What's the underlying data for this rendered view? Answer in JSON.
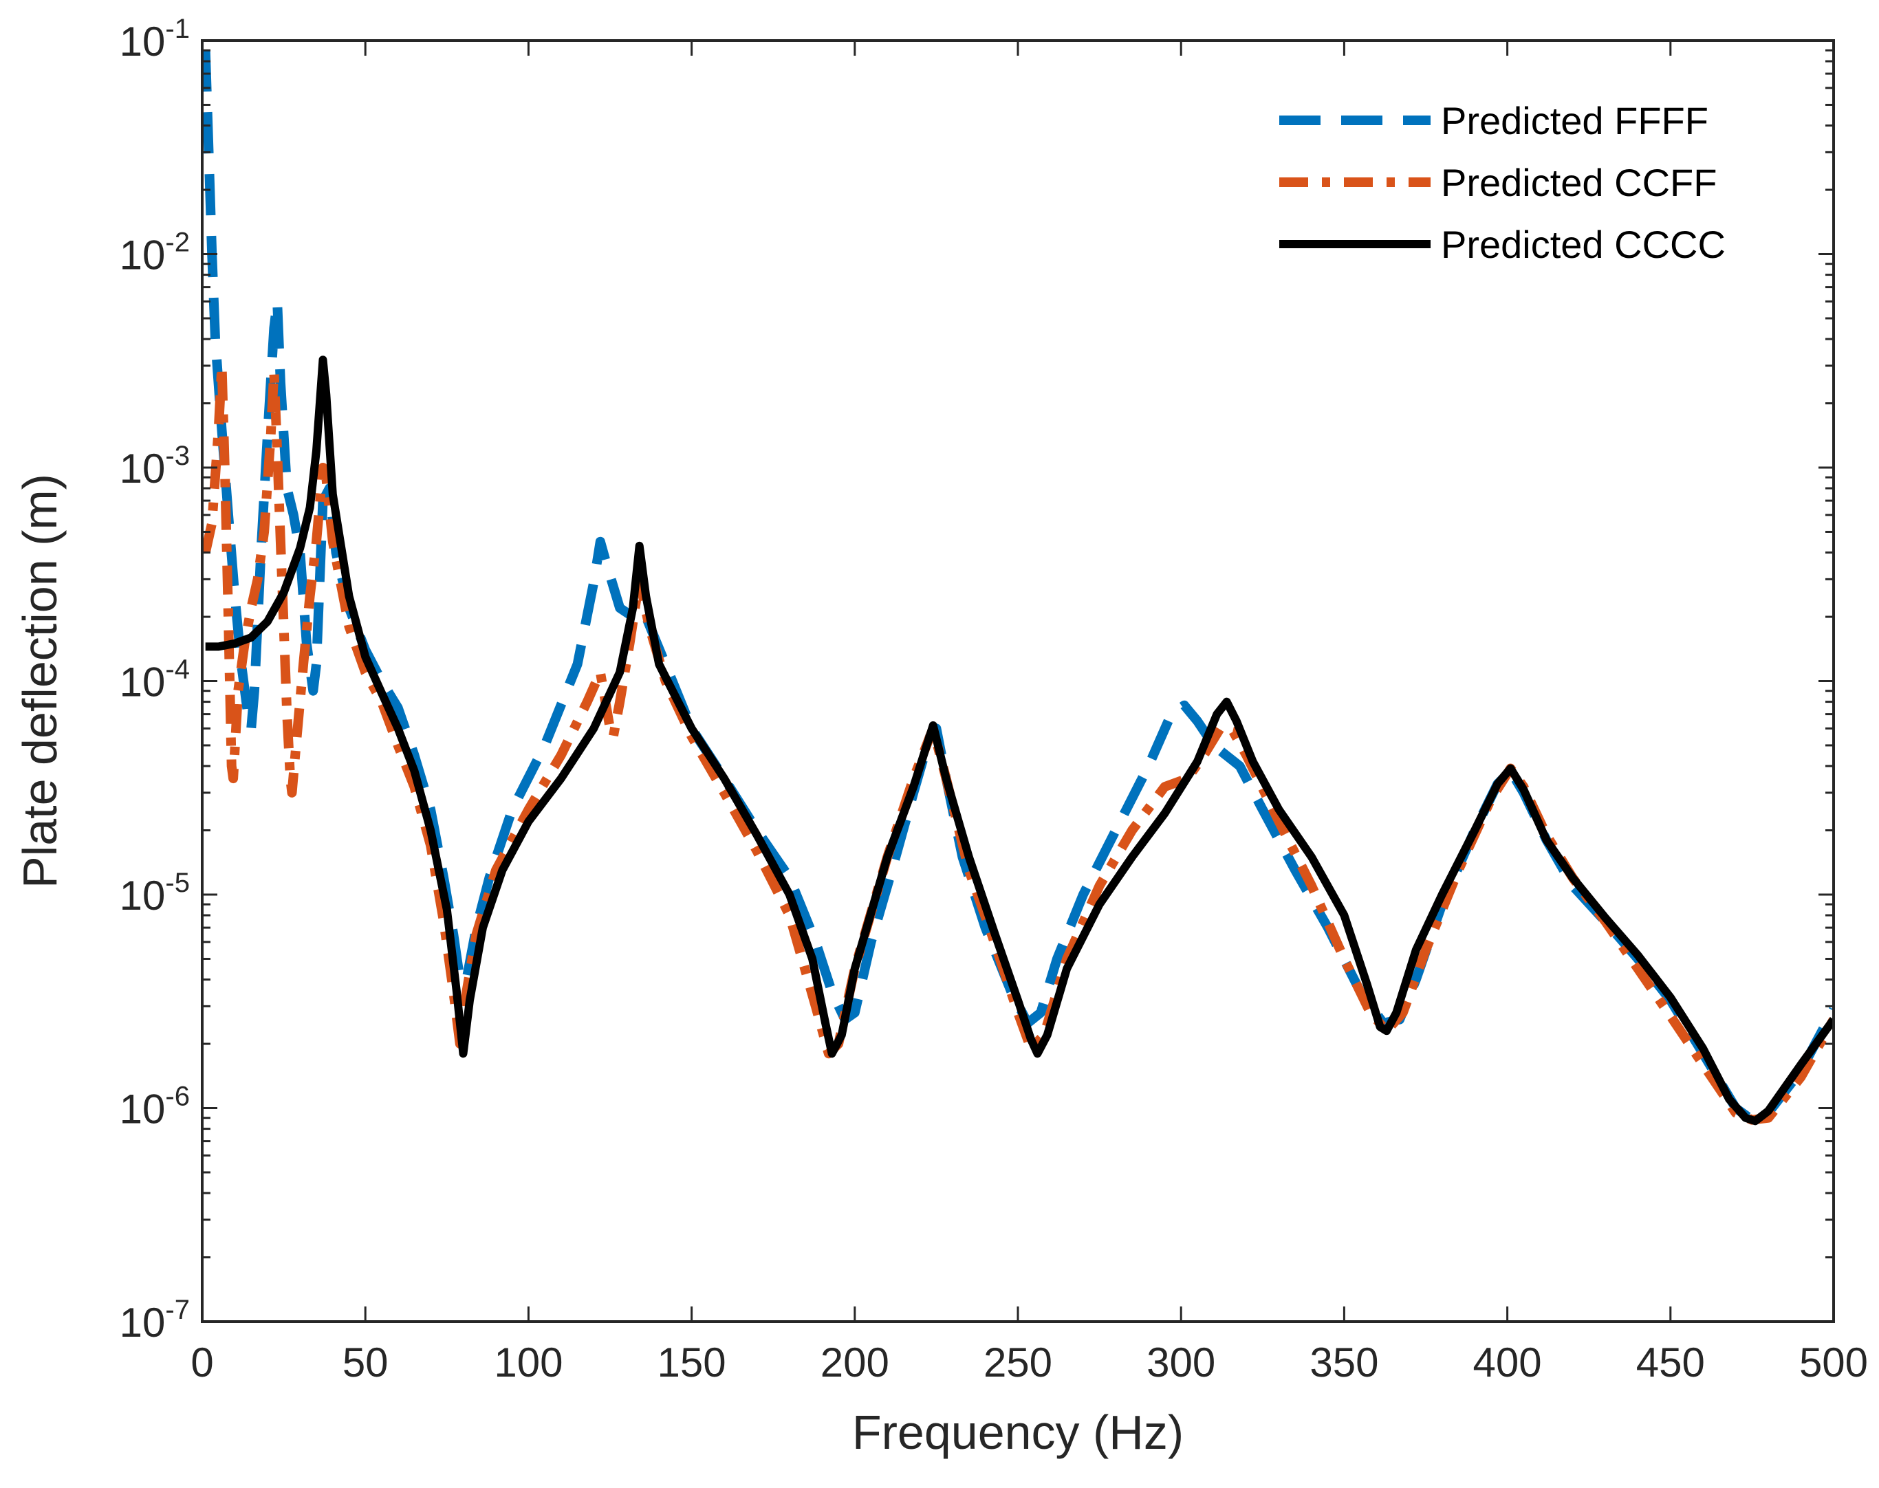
{
  "chart_data": {
    "type": "line",
    "title": "",
    "xlabel": "Frequency (Hz)",
    "ylabel": "Plate deflection (m)",
    "xscale": "linear",
    "yscale": "log",
    "xlim": [
      0,
      500
    ],
    "ylim": [
      1e-07,
      0.1
    ],
    "x_ticks": [
      {
        "value": 0,
        "label": "0"
      },
      {
        "value": 50,
        "label": "50"
      },
      {
        "value": 100,
        "label": "100"
      },
      {
        "value": 150,
        "label": "150"
      },
      {
        "value": 200,
        "label": "200"
      },
      {
        "value": 250,
        "label": "250"
      },
      {
        "value": 300,
        "label": "300"
      },
      {
        "value": 350,
        "label": "350"
      },
      {
        "value": 400,
        "label": "400"
      },
      {
        "value": 450,
        "label": "450"
      },
      {
        "value": 500,
        "label": "500"
      }
    ],
    "y_ticks": [
      {
        "exponent": -7,
        "base": "10",
        "sup": "-7"
      },
      {
        "exponent": -6,
        "base": "10",
        "sup": "-6"
      },
      {
        "exponent": -5,
        "base": "10",
        "sup": "-5"
      },
      {
        "exponent": -4,
        "base": "10",
        "sup": "-4"
      },
      {
        "exponent": -3,
        "base": "10",
        "sup": "-3"
      },
      {
        "exponent": -2,
        "base": "10",
        "sup": "-2"
      },
      {
        "exponent": -1,
        "base": "10",
        "sup": "-1"
      }
    ],
    "grid": false,
    "legend_position": "top-right",
    "series": [
      {
        "name": "Predicted FFFF",
        "color": "#0072BD",
        "style": "dashed",
        "points": [
          [
            1,
            0.09
          ],
          [
            2,
            0.03
          ],
          [
            3,
            0.01
          ],
          [
            4,
            0.004
          ],
          [
            6,
            0.0015
          ],
          [
            8,
            0.0006
          ],
          [
            10,
            0.00025
          ],
          [
            12,
            0.00012
          ],
          [
            14,
            7e-05
          ],
          [
            15,
            6e-05
          ],
          [
            16,
            9e-05
          ],
          [
            18,
            0.0004
          ],
          [
            20,
            0.0014
          ],
          [
            22,
            0.0045
          ],
          [
            23,
            0.006
          ],
          [
            24,
            0.0025
          ],
          [
            26,
            0.0008
          ],
          [
            28,
            0.0006
          ],
          [
            30,
            0.0004
          ],
          [
            32,
            0.00015
          ],
          [
            34,
            9e-05
          ],
          [
            35,
            0.00012
          ],
          [
            37,
            0.0007
          ],
          [
            39,
            0.0008
          ],
          [
            41,
            0.0004
          ],
          [
            45,
            0.00022
          ],
          [
            50,
            0.00014
          ],
          [
            55,
            0.0001
          ],
          [
            60,
            7.5e-05
          ],
          [
            65,
            4.5e-05
          ],
          [
            70,
            2.5e-05
          ],
          [
            74,
            1.2e-05
          ],
          [
            77,
            6.5e-06
          ],
          [
            79,
            4e-06
          ],
          [
            81,
            4e-06
          ],
          [
            84,
            7e-06
          ],
          [
            88,
            1.2e-05
          ],
          [
            95,
            2.5e-05
          ],
          [
            105,
            5e-05
          ],
          [
            115,
            0.00012
          ],
          [
            120,
            0.00029
          ],
          [
            122,
            0.00045
          ],
          [
            124,
            0.00035
          ],
          [
            128,
            0.00022
          ],
          [
            132,
            0.0002
          ],
          [
            136,
            0.0002
          ],
          [
            142,
            0.00012
          ],
          [
            150,
            6e-05
          ],
          [
            160,
            3.5e-05
          ],
          [
            170,
            2e-05
          ],
          [
            180,
            1.2e-05
          ],
          [
            188,
            6e-06
          ],
          [
            193,
            3.5e-06
          ],
          [
            197,
            2.6e-06
          ],
          [
            200,
            2.8e-06
          ],
          [
            205,
            6e-06
          ],
          [
            212,
            1.4e-05
          ],
          [
            218,
            3e-05
          ],
          [
            223,
            5.5e-05
          ],
          [
            225,
            6e-05
          ],
          [
            228,
            3.5e-05
          ],
          [
            233,
            1.5e-05
          ],
          [
            240,
            7e-06
          ],
          [
            248,
            3.5e-06
          ],
          [
            253,
            2.5e-06
          ],
          [
            257,
            2.8e-06
          ],
          [
            262,
            5e-06
          ],
          [
            270,
            1e-05
          ],
          [
            280,
            2e-05
          ],
          [
            290,
            4e-05
          ],
          [
            297,
            7e-05
          ],
          [
            301,
            7.7e-05
          ],
          [
            305,
            6.5e-05
          ],
          [
            310,
            5e-05
          ],
          [
            318,
            4e-05
          ],
          [
            325,
            2.5e-05
          ],
          [
            335,
            1.3e-05
          ],
          [
            345,
            7e-06
          ],
          [
            355,
            3.5e-06
          ],
          [
            362,
            2.5e-06
          ],
          [
            367,
            2.6e-06
          ],
          [
            372,
            4e-06
          ],
          [
            380,
            9e-06
          ],
          [
            390,
            2e-05
          ],
          [
            397,
            3.3e-05
          ],
          [
            401,
            3.8e-05
          ],
          [
            405,
            3e-05
          ],
          [
            412,
            1.8e-05
          ],
          [
            420,
            1.1e-05
          ],
          [
            430,
            7.5e-06
          ],
          [
            440,
            5e-06
          ],
          [
            450,
            3.2e-06
          ],
          [
            460,
            1.8e-06
          ],
          [
            470,
            1e-06
          ],
          [
            475,
            8.8e-07
          ],
          [
            480,
            9.5e-07
          ],
          [
            490,
            1.5e-06
          ],
          [
            500,
            2.9e-06
          ]
        ]
      },
      {
        "name": "Predicted CCFF",
        "color": "#D95319",
        "style": "dashdot",
        "points": [
          [
            1,
            0.0004
          ],
          [
            3,
            0.00055
          ],
          [
            5,
            0.0015
          ],
          [
            6,
            0.003
          ],
          [
            7,
            0.0009
          ],
          [
            8,
            0.0002
          ],
          [
            9,
            4e-05
          ],
          [
            9.5,
            3.5e-05
          ],
          [
            11,
            9e-05
          ],
          [
            13,
            0.00015
          ],
          [
            15,
            0.00022
          ],
          [
            17,
            0.0003
          ],
          [
            19,
            0.0005
          ],
          [
            21,
            0.0014
          ],
          [
            22,
            0.0028
          ],
          [
            23,
            0.0012
          ],
          [
            24,
            0.00045
          ],
          [
            25,
            0.00018
          ],
          [
            26,
            7e-05
          ],
          [
            27,
            3.5e-05
          ],
          [
            27.5,
            3e-05
          ],
          [
            29,
            5.5e-05
          ],
          [
            31,
            0.00012
          ],
          [
            33,
            0.00025
          ],
          [
            35,
            0.00045
          ],
          [
            37,
            0.001
          ],
          [
            38,
            0.0009
          ],
          [
            40,
            0.00045
          ],
          [
            45,
            0.00018
          ],
          [
            50,
            0.00011
          ],
          [
            55,
            8e-05
          ],
          [
            60,
            5e-05
          ],
          [
            65,
            3.2e-05
          ],
          [
            70,
            1.7e-05
          ],
          [
            74,
            7.5e-06
          ],
          [
            77,
            3.5e-06
          ],
          [
            79,
            2e-06
          ],
          [
            81,
            3.5e-06
          ],
          [
            84,
            6.5e-06
          ],
          [
            90,
            1.3e-05
          ],
          [
            100,
            2.5e-05
          ],
          [
            110,
            4.5e-05
          ],
          [
            118,
            8e-05
          ],
          [
            122,
            0.00011
          ],
          [
            125,
            6e-05
          ],
          [
            126,
            5.5e-05
          ],
          [
            128,
            8e-05
          ],
          [
            131,
            0.00015
          ],
          [
            134,
            0.0003
          ],
          [
            137,
            0.00018
          ],
          [
            142,
            0.0001
          ],
          [
            150,
            5.5e-05
          ],
          [
            160,
            3e-05
          ],
          [
            170,
            1.6e-05
          ],
          [
            180,
            8e-06
          ],
          [
            188,
            3e-06
          ],
          [
            192,
            1.8e-06
          ],
          [
            195,
            2e-06
          ],
          [
            200,
            4.5e-06
          ],
          [
            210,
            1.5e-05
          ],
          [
            218,
            3.5e-05
          ],
          [
            224,
            6e-05
          ],
          [
            228,
            3.5e-05
          ],
          [
            235,
            1.3e-05
          ],
          [
            242,
            6.5e-06
          ],
          [
            250,
            2.8e-06
          ],
          [
            254,
            1.9e-06
          ],
          [
            258,
            2.2e-06
          ],
          [
            265,
            5e-06
          ],
          [
            275,
            1.1e-05
          ],
          [
            285,
            2e-05
          ],
          [
            295,
            3.2e-05
          ],
          [
            302,
            3.5e-05
          ],
          [
            307,
            4.5e-05
          ],
          [
            312,
            6e-05
          ],
          [
            316,
            5.8e-05
          ],
          [
            320,
            4.5e-05
          ],
          [
            330,
            2.2e-05
          ],
          [
            340,
            1.1e-05
          ],
          [
            350,
            5e-06
          ],
          [
            358,
            2.8e-06
          ],
          [
            363,
            2.3e-06
          ],
          [
            368,
            2.8e-06
          ],
          [
            375,
            5.5e-06
          ],
          [
            385,
            1.3e-05
          ],
          [
            395,
            2.8e-05
          ],
          [
            401,
            3.9e-05
          ],
          [
            405,
            3.2e-05
          ],
          [
            412,
            1.9e-05
          ],
          [
            420,
            1.2e-05
          ],
          [
            430,
            7.5e-06
          ],
          [
            440,
            4.5e-06
          ],
          [
            450,
            2.7e-06
          ],
          [
            460,
            1.6e-06
          ],
          [
            470,
            9.5e-07
          ],
          [
            475,
            8.8e-07
          ],
          [
            480,
            9e-07
          ],
          [
            490,
            1.4e-06
          ],
          [
            500,
            2.6e-06
          ]
        ]
      },
      {
        "name": "Predicted CCCC",
        "color": "#000000",
        "style": "solid",
        "points": [
          [
            1,
            0.000145
          ],
          [
            5,
            0.000145
          ],
          [
            10,
            0.00015
          ],
          [
            15,
            0.00016
          ],
          [
            20,
            0.00019
          ],
          [
            25,
            0.00026
          ],
          [
            30,
            0.00042
          ],
          [
            33,
            0.00065
          ],
          [
            35,
            0.0012
          ],
          [
            37,
            0.0032
          ],
          [
            38,
            0.0022
          ],
          [
            40,
            0.00075
          ],
          [
            45,
            0.00025
          ],
          [
            50,
            0.00013
          ],
          [
            55,
            8.8e-05
          ],
          [
            60,
            6e-05
          ],
          [
            65,
            3.8e-05
          ],
          [
            70,
            2e-05
          ],
          [
            75,
            8.5e-06
          ],
          [
            78,
            3.5e-06
          ],
          [
            80,
            1.8e-06
          ],
          [
            82,
            3.2e-06
          ],
          [
            86,
            7e-06
          ],
          [
            92,
            1.3e-05
          ],
          [
            100,
            2.2e-05
          ],
          [
            110,
            3.5e-05
          ],
          [
            120,
            6e-05
          ],
          [
            128,
            0.00011
          ],
          [
            132,
            0.00022
          ],
          [
            134,
            0.00043
          ],
          [
            136,
            0.00025
          ],
          [
            140,
            0.00012
          ],
          [
            150,
            6e-05
          ],
          [
            160,
            3.5e-05
          ],
          [
            170,
            1.9e-05
          ],
          [
            180,
            1e-05
          ],
          [
            187,
            5e-06
          ],
          [
            191,
            2.5e-06
          ],
          [
            193,
            1.8e-06
          ],
          [
            196,
            2.2e-06
          ],
          [
            200,
            4.5e-06
          ],
          [
            210,
            1.5e-05
          ],
          [
            218,
            3.2e-05
          ],
          [
            224,
            6.2e-05
          ],
          [
            228,
            3.5e-05
          ],
          [
            235,
            1.5e-05
          ],
          [
            243,
            6.5e-06
          ],
          [
            250,
            3.2e-06
          ],
          [
            254,
            2.1e-06
          ],
          [
            256,
            1.8e-06
          ],
          [
            259,
            2.2e-06
          ],
          [
            265,
            4.5e-06
          ],
          [
            275,
            9e-06
          ],
          [
            285,
            1.5e-05
          ],
          [
            295,
            2.4e-05
          ],
          [
            305,
            4.2e-05
          ],
          [
            311,
            7e-05
          ],
          [
            314,
            8e-05
          ],
          [
            317,
            6.5e-05
          ],
          [
            322,
            4.2e-05
          ],
          [
            330,
            2.5e-05
          ],
          [
            340,
            1.5e-05
          ],
          [
            350,
            8e-06
          ],
          [
            357,
            3.8e-06
          ],
          [
            361,
            2.4e-06
          ],
          [
            363,
            2.3e-06
          ],
          [
            366,
            2.8e-06
          ],
          [
            372,
            5.5e-06
          ],
          [
            380,
            1e-05
          ],
          [
            390,
            2e-05
          ],
          [
            397,
            3.3e-05
          ],
          [
            401,
            3.9e-05
          ],
          [
            405,
            3.1e-05
          ],
          [
            412,
            1.8e-05
          ],
          [
            420,
            1.2e-05
          ],
          [
            430,
            7.8e-06
          ],
          [
            440,
            5.2e-06
          ],
          [
            450,
            3.3e-06
          ],
          [
            460,
            1.9e-06
          ],
          [
            468,
            1.1e-06
          ],
          [
            473,
            9e-07
          ],
          [
            476,
            8.7e-07
          ],
          [
            480,
            9.7e-07
          ],
          [
            490,
            1.6e-06
          ],
          [
            500,
            2.6e-06
          ]
        ]
      }
    ]
  }
}
